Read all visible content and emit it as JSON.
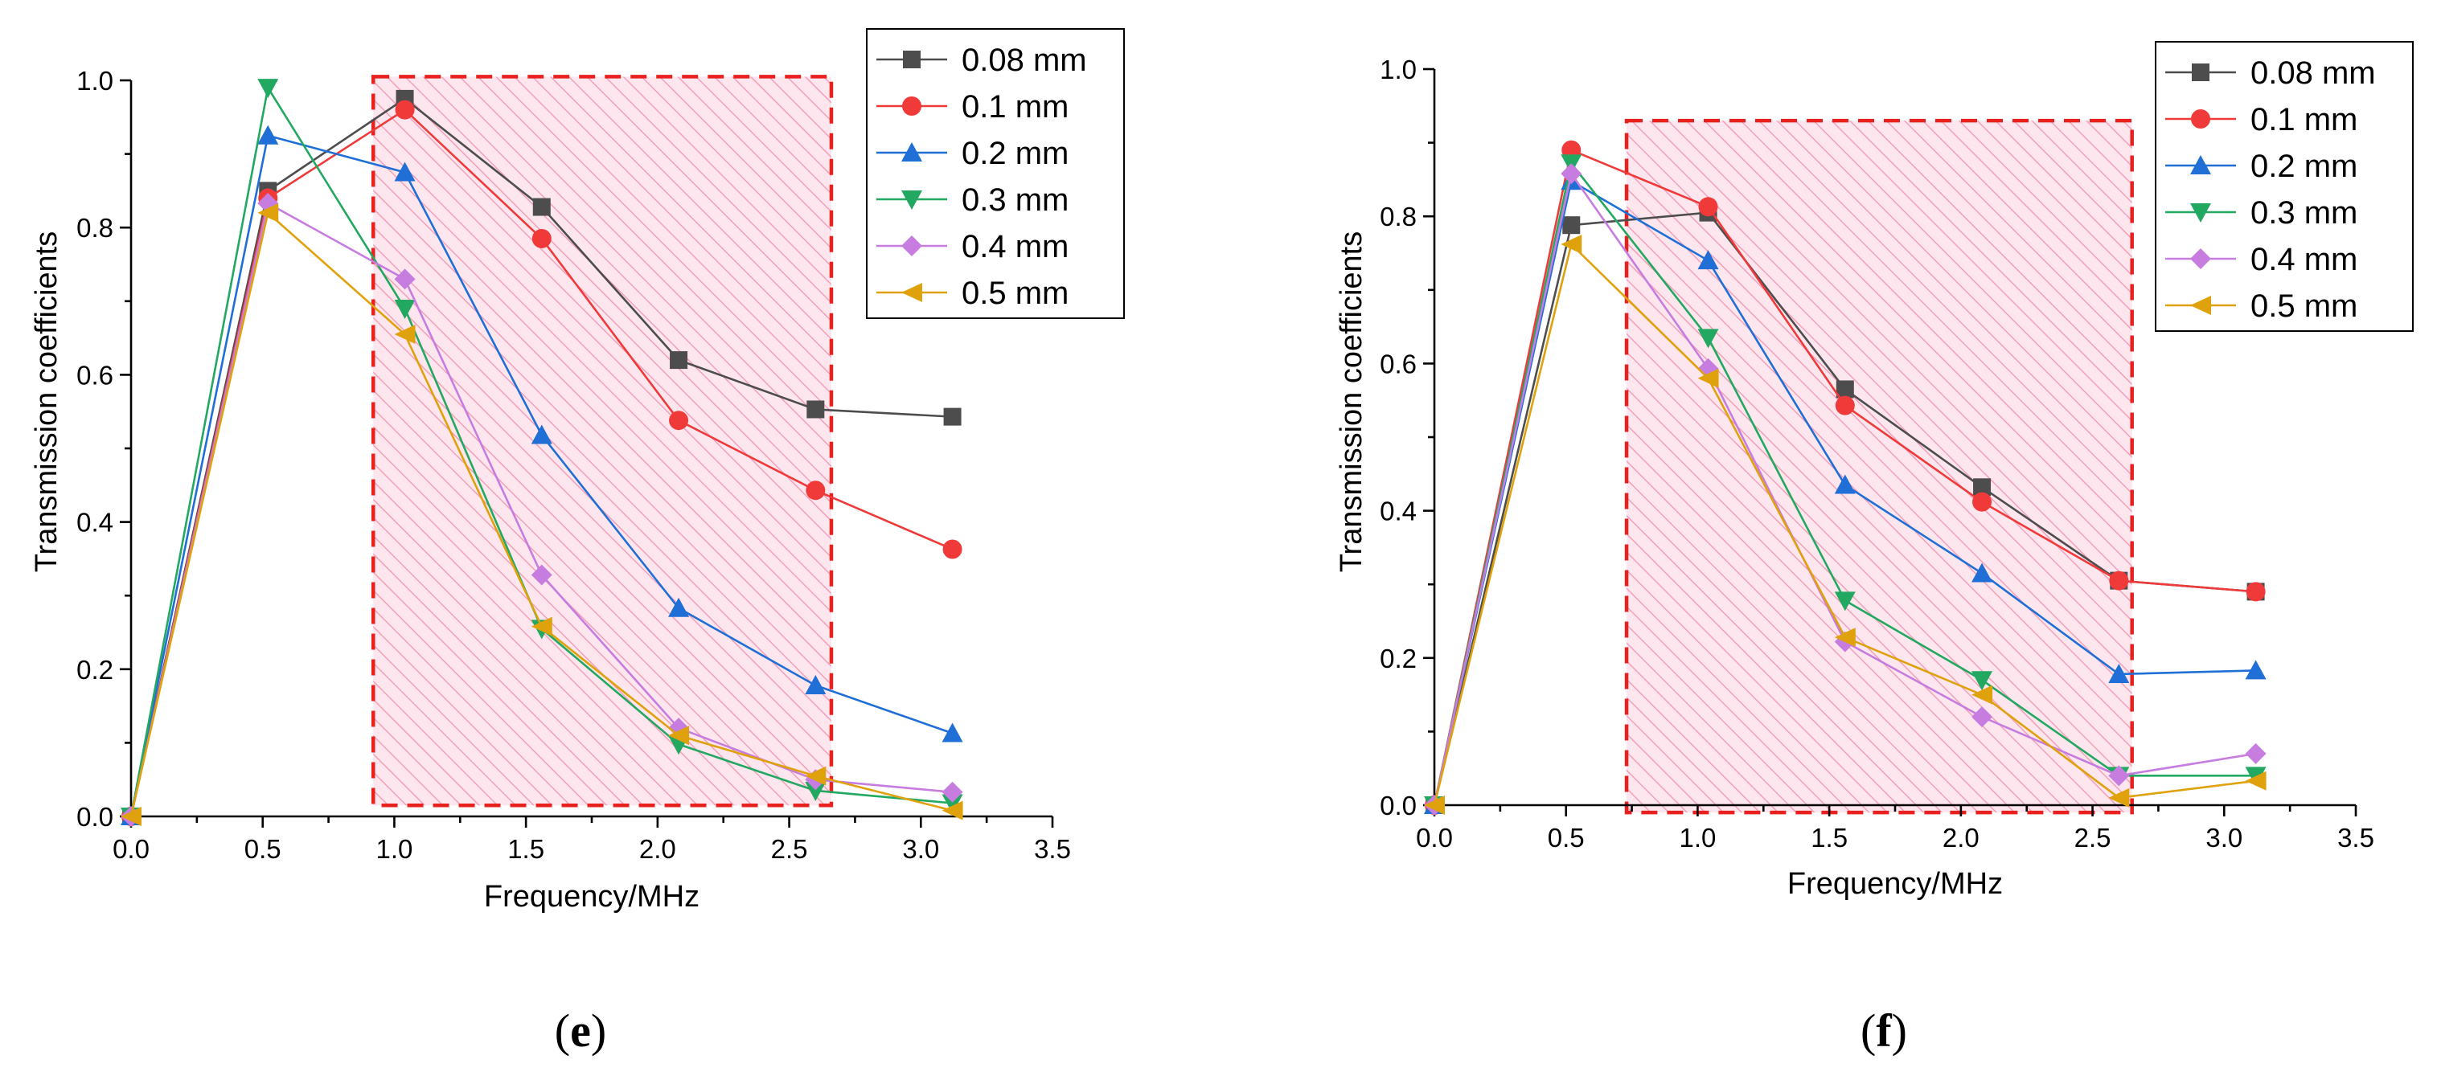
{
  "colors": {
    "hatch": "#f5a3ba",
    "hatch_border": "#e8201e"
  },
  "chart_data": [
    {
      "type": "line",
      "panel_label": "e",
      "xlabel": "Frequency/MHz",
      "ylabel": "Transmission coefficients",
      "xlim": [
        0,
        3.5
      ],
      "ylim": [
        0,
        1.0
      ],
      "xticks": [
        "0.0",
        "0.5",
        "1.0",
        "1.5",
        "2.0",
        "2.5",
        "3.0",
        "3.5"
      ],
      "yticks": [
        "0.0",
        "0.2",
        "0.4",
        "0.6",
        "0.8",
        "1.0"
      ],
      "highlight_region": {
        "x": [
          0.92,
          2.66
        ],
        "y": [
          0.015,
          1.005
        ]
      },
      "legend_position": "top-right",
      "x": [
        0,
        0.52,
        1.04,
        1.56,
        2.08,
        2.6,
        3.12
      ],
      "series": [
        {
          "name": "0.08 mm",
          "color": "#4d4d4d",
          "marker": "square",
          "values": [
            0,
            0.85,
            0.975,
            0.828,
            0.62,
            0.553,
            0.543
          ]
        },
        {
          "name": "0.1 mm",
          "color": "#f03a3a",
          "marker": "circle",
          "values": [
            0,
            0.84,
            0.96,
            0.785,
            0.538,
            0.443,
            0.363
          ]
        },
        {
          "name": "0.2 mm",
          "color": "#1f6fd6",
          "marker": "triangle-up",
          "values": [
            0,
            0.925,
            0.875,
            0.518,
            0.283,
            0.178,
            0.113
          ]
        },
        {
          "name": "0.3 mm",
          "color": "#22a860",
          "marker": "triangle-down",
          "values": [
            0,
            0.99,
            0.69,
            0.255,
            0.098,
            0.035,
            0.018
          ]
        },
        {
          "name": "0.4 mm",
          "color": "#c77de0",
          "marker": "diamond",
          "values": [
            0,
            0.833,
            0.73,
            0.328,
            0.12,
            0.05,
            0.033
          ]
        },
        {
          "name": "0.5 mm",
          "color": "#e0a20c",
          "marker": "triangle-left",
          "values": [
            0,
            0.82,
            0.655,
            0.258,
            0.11,
            0.055,
            0.008
          ]
        }
      ]
    },
    {
      "type": "line",
      "panel_label": "f",
      "xlabel": "Frequency/MHz",
      "ylabel": "Transmission coefficients",
      "xlim": [
        0,
        3.5
      ],
      "ylim": [
        0,
        1.0
      ],
      "xticks": [
        "0.0",
        "0.5",
        "1.0",
        "1.5",
        "2.0",
        "2.5",
        "3.0",
        "3.5"
      ],
      "yticks": [
        "0.0",
        "0.2",
        "0.4",
        "0.6",
        "0.8",
        "1.0"
      ],
      "highlight_region": {
        "x": [
          0.73,
          2.65
        ],
        "y": [
          -0.01,
          0.93
        ]
      },
      "legend_position": "top-right",
      "x": [
        0,
        0.52,
        1.04,
        1.56,
        2.08,
        2.6,
        3.12
      ],
      "series": [
        {
          "name": "0.08 mm",
          "color": "#4d4d4d",
          "marker": "square",
          "values": [
            0,
            0.788,
            0.805,
            0.565,
            0.432,
            0.305,
            0.29
          ]
        },
        {
          "name": "0.1 mm",
          "color": "#f03a3a",
          "marker": "circle",
          "values": [
            0,
            0.89,
            0.813,
            0.543,
            0.412,
            0.305,
            0.29
          ]
        },
        {
          "name": "0.2 mm",
          "color": "#1f6fd6",
          "marker": "triangle-up",
          "values": [
            0,
            0.848,
            0.74,
            0.435,
            0.315,
            0.178,
            0.183
          ]
        },
        {
          "name": "0.3 mm",
          "color": "#22a860",
          "marker": "triangle-down",
          "values": [
            0,
            0.872,
            0.635,
            0.278,
            0.17,
            0.04,
            0.04
          ]
        },
        {
          "name": "0.4 mm",
          "color": "#c77de0",
          "marker": "diamond",
          "values": [
            0,
            0.858,
            0.593,
            0.222,
            0.12,
            0.04,
            0.07
          ]
        },
        {
          "name": "0.5 mm",
          "color": "#e0a20c",
          "marker": "triangle-left",
          "values": [
            0,
            0.762,
            0.58,
            0.228,
            0.15,
            0.01,
            0.033
          ]
        }
      ]
    }
  ]
}
